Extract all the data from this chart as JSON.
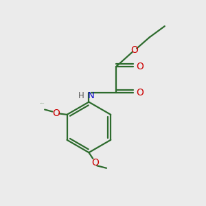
{
  "background_color": "#ebebeb",
  "bond_color": "#2d6b2d",
  "o_color": "#cc0000",
  "n_color": "#0000cc",
  "line_width": 1.6,
  "figsize": [
    3.0,
    3.0
  ],
  "dpi": 100,
  "xlim": [
    0,
    10
  ],
  "ylim": [
    0,
    10
  ]
}
